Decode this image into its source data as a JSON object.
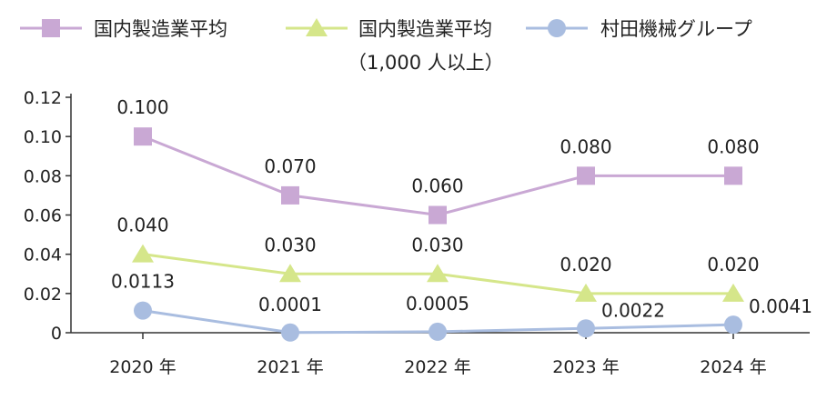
{
  "chart_data": {
    "type": "line",
    "title": "",
    "xlabel": "",
    "ylabel": "",
    "categories": [
      "2020 年",
      "2021 年",
      "2022 年",
      "2023 年",
      "2024 年"
    ],
    "ylim": [
      0,
      0.12
    ],
    "yticks": [
      "0",
      "0.02",
      "0.04",
      "0.06",
      "0.08",
      "0.10",
      "0.12"
    ],
    "grid": false,
    "legend_position": "top",
    "series": [
      {
        "name": "国内製造業平均",
        "marker": "square",
        "color": "#c9a8d4",
        "values": [
          0.1,
          0.07,
          0.06,
          0.08,
          0.08
        ],
        "labels": [
          "0.100",
          "0.070",
          "0.060",
          "0.080",
          "0.080"
        ]
      },
      {
        "name": "国内製造業平均",
        "name_line2": "（1,000 人以上）",
        "marker": "triangle",
        "color": "#d5e68a",
        "values": [
          0.04,
          0.03,
          0.03,
          0.02,
          0.02
        ],
        "labels": [
          "0.040",
          "0.030",
          "0.030",
          "0.020",
          "0.020"
        ]
      },
      {
        "name": "村田機械グループ",
        "marker": "circle",
        "color": "#a9bde0",
        "values": [
          0.0113,
          0.0001,
          0.0005,
          0.0022,
          0.0041
        ],
        "labels": [
          "0.0113",
          "0.0001",
          "0.0005",
          "0.0022",
          "0.0041"
        ]
      }
    ]
  }
}
